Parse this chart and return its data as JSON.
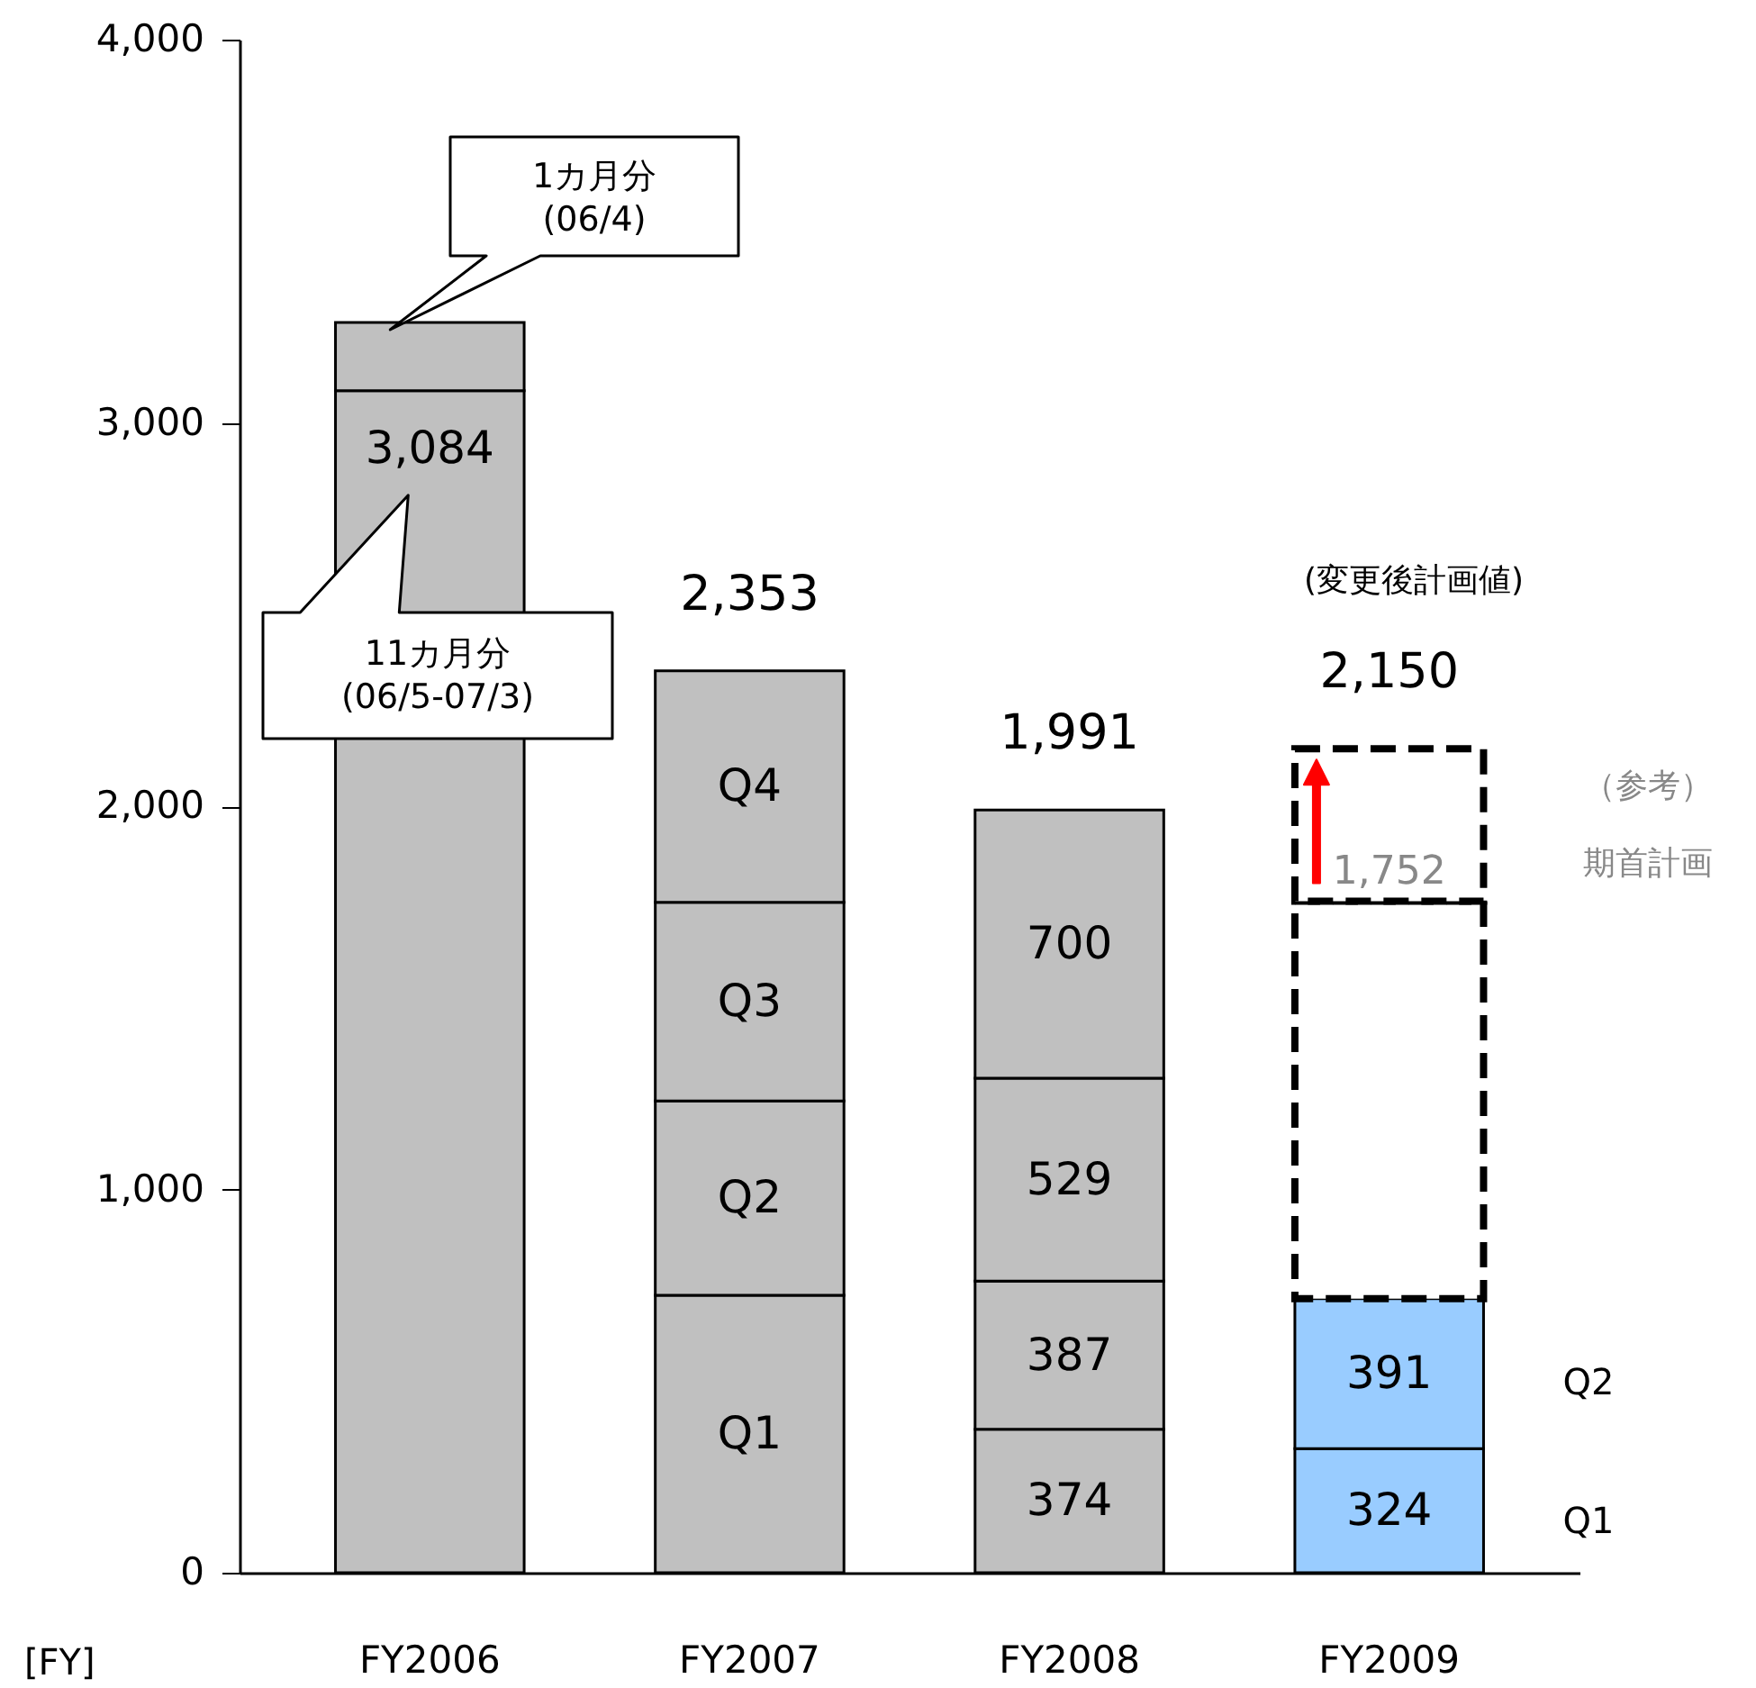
{
  "chart_data": {
    "type": "bar",
    "stacked": true,
    "xlabel": "[FY]",
    "categories": [
      "FY2006",
      "FY2007",
      "FY2008",
      "FY2009"
    ],
    "series": [
      {
        "colors": [
          "#c0c0c0",
          "#c0c0c0",
          "#c0c0c0",
          "#99ccff"
        ],
        "values": [
          3084,
          724,
          374,
          324
        ],
        "value_labels": [
          "3,084",
          "Q1",
          "374",
          "324"
        ]
      },
      {
        "colors": [
          "#c0c0c0",
          "#c0c0c0",
          "#c0c0c0",
          "#99ccff"
        ],
        "values": [
          178,
          507,
          387,
          391
        ],
        "value_labels": [
          null,
          "Q2",
          "387",
          "391"
        ]
      },
      {
        "color": "#c0c0c0",
        "values": [
          null,
          518,
          529,
          null
        ],
        "value_labels": [
          null,
          "Q3",
          "529",
          null
        ]
      },
      {
        "color": "#c0c0c0",
        "values": [
          null,
          604,
          700,
          null
        ],
        "value_labels": [
          null,
          "Q4",
          "700",
          null
        ]
      },
      {
        "color": "#ffffff",
        "line_style": "dashed",
        "values": [
          null,
          null,
          null,
          1037
        ]
      },
      {
        "color": "#ffffff",
        "line_style": "dashed",
        "values": [
          null,
          null,
          null,
          398
        ]
      }
    ],
    "totals": [
      null,
      "2,353",
      "1,991",
      "2,150"
    ],
    "ylim": [
      0,
      4000
    ],
    "yticks": [
      {
        "value": 0,
        "label": "0"
      },
      {
        "value": 1000,
        "label": "1,000"
      },
      {
        "value": 2000,
        "label": "2,000"
      },
      {
        "value": 3000,
        "label": "3,000"
      },
      {
        "value": 4000,
        "label": "4,000"
      }
    ],
    "annotations": [
      "1カ月分\n(06/4)",
      "11カ月分\n(06/5-07/3)",
      "(変更後計画値)",
      {
        "text": "1,752",
        "x": "FY2009",
        "y": 1752
      },
      "（参考）",
      "期首計画",
      "Q2",
      "Q1"
    ],
    "grid": false
  }
}
